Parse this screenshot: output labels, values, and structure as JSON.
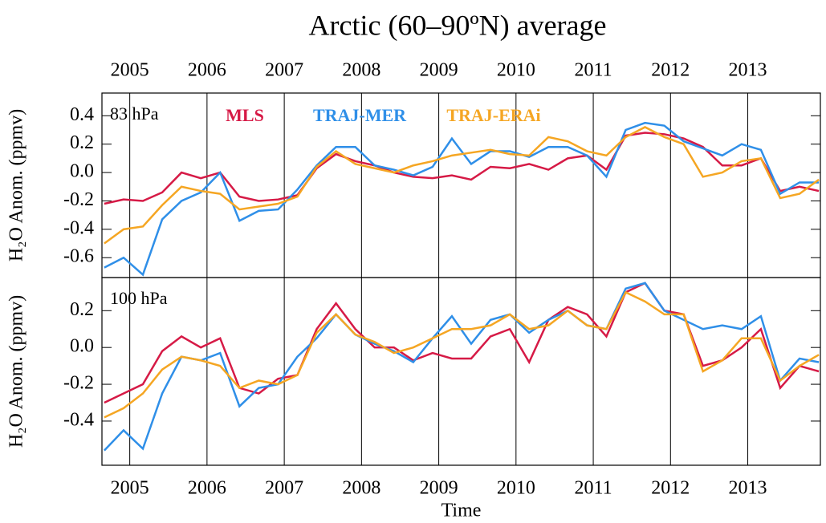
{
  "title": "Arctic (60–90ºN) average",
  "chart_data": [
    {
      "type": "line",
      "annotation": "83 hPa",
      "ylabel": "H₂O Anom. (ppmv)",
      "x": [
        2004.67,
        2004.92,
        2005.17,
        2005.42,
        2005.67,
        2005.92,
        2006.17,
        2006.42,
        2006.67,
        2006.92,
        2007.17,
        2007.42,
        2007.67,
        2007.92,
        2008.17,
        2008.42,
        2008.67,
        2008.92,
        2009.17,
        2009.42,
        2009.67,
        2009.92,
        2010.17,
        2010.42,
        2010.67,
        2010.92,
        2011.17,
        2011.42,
        2011.67,
        2011.92,
        2012.17,
        2012.42,
        2012.67,
        2012.92,
        2013.17,
        2013.42,
        2013.67,
        2013.92
      ],
      "xlim": [
        2004.64,
        2013.94
      ],
      "xticks": [
        2005,
        2006,
        2007,
        2008,
        2009,
        2010,
        2011,
        2012,
        2013
      ],
      "ylim": [
        -0.74,
        0.56
      ],
      "yticks": [
        0.4,
        0.2,
        {
          "value": 0,
          "label": "0.0"
        },
        -0.2,
        -0.4,
        -0.6
      ],
      "grid": true,
      "series": [
        {
          "name": "MLS",
          "color": "#d61a46",
          "values": [
            -0.22,
            -0.19,
            -0.2,
            -0.14,
            0.0,
            -0.04,
            0.0,
            -0.17,
            -0.2,
            -0.19,
            -0.16,
            0.03,
            0.13,
            0.08,
            0.05,
            0.0,
            -0.03,
            -0.04,
            -0.02,
            -0.05,
            0.04,
            0.03,
            0.06,
            0.02,
            0.1,
            0.12,
            0.02,
            0.26,
            0.28,
            0.27,
            0.24,
            0.18,
            0.05,
            0.05,
            0.1,
            -0.13,
            -0.1,
            -0.13
          ]
        },
        {
          "name": "TRAJ-MER",
          "color": "#2f8fe8",
          "values": [
            -0.67,
            -0.6,
            -0.72,
            -0.33,
            -0.2,
            -0.14,
            0.0,
            -0.34,
            -0.27,
            -0.26,
            -0.12,
            0.05,
            0.18,
            0.18,
            0.05,
            0.02,
            -0.02,
            0.04,
            0.24,
            0.06,
            0.15,
            0.15,
            0.11,
            0.18,
            0.18,
            0.12,
            -0.03,
            0.3,
            0.35,
            0.33,
            0.22,
            0.17,
            0.12,
            0.2,
            0.16,
            -0.15,
            -0.07,
            -0.07
          ]
        },
        {
          "name": "TRAJ-ERAi",
          "color": "#f5a623",
          "values": [
            -0.5,
            -0.4,
            -0.38,
            -0.23,
            -0.1,
            -0.13,
            -0.15,
            -0.26,
            -0.24,
            -0.22,
            -0.17,
            0.04,
            0.15,
            0.06,
            0.03,
            0.0,
            0.05,
            0.08,
            0.12,
            0.14,
            0.16,
            0.13,
            0.12,
            0.25,
            0.22,
            0.15,
            0.12,
            0.25,
            0.32,
            0.25,
            0.2,
            -0.03,
            0.0,
            0.08,
            0.1,
            -0.18,
            -0.15,
            -0.05
          ]
        }
      ]
    },
    {
      "type": "line",
      "annotation": "100 hPa",
      "ylabel": "H₂O Anom. (ppmv)",
      "xlabel": "Time",
      "x": [
        2004.67,
        2004.92,
        2005.17,
        2005.42,
        2005.67,
        2005.92,
        2006.17,
        2006.42,
        2006.67,
        2006.92,
        2007.17,
        2007.42,
        2007.67,
        2007.92,
        2008.17,
        2008.42,
        2008.67,
        2008.92,
        2009.17,
        2009.42,
        2009.67,
        2009.92,
        2010.17,
        2010.42,
        2010.67,
        2010.92,
        2011.17,
        2011.42,
        2011.67,
        2011.92,
        2012.17,
        2012.42,
        2012.67,
        2012.92,
        2013.17,
        2013.42,
        2013.67,
        2013.92
      ],
      "xlim": [
        2004.64,
        2013.94
      ],
      "xticks": [
        2005,
        2006,
        2007,
        2008,
        2009,
        2010,
        2011,
        2012,
        2013
      ],
      "ylim": [
        -0.64,
        0.38
      ],
      "yticks": [
        0.2,
        {
          "value": 0,
          "label": "0.0"
        },
        -0.2,
        -0.4
      ],
      "grid": true,
      "series": [
        {
          "name": "MLS",
          "color": "#d61a46",
          "values": [
            -0.3,
            -0.25,
            -0.2,
            -0.02,
            0.06,
            0.0,
            0.05,
            -0.22,
            -0.25,
            -0.17,
            -0.15,
            0.1,
            0.24,
            0.1,
            0.0,
            0.0,
            -0.07,
            -0.03,
            -0.06,
            -0.06,
            0.06,
            0.1,
            -0.08,
            0.15,
            0.22,
            0.18,
            0.06,
            0.3,
            0.35,
            0.2,
            0.18,
            -0.1,
            -0.07,
            0.0,
            0.1,
            -0.22,
            -0.1,
            -0.13
          ]
        },
        {
          "name": "TRAJ-MER",
          "color": "#2f8fe8",
          "values": [
            -0.56,
            -0.45,
            -0.55,
            -0.25,
            -0.05,
            -0.07,
            -0.03,
            -0.32,
            -0.22,
            -0.2,
            -0.05,
            0.05,
            0.18,
            0.07,
            0.02,
            -0.02,
            -0.08,
            0.05,
            0.17,
            0.02,
            0.15,
            0.18,
            0.08,
            0.15,
            0.2,
            0.12,
            0.1,
            0.32,
            0.35,
            0.2,
            0.15,
            0.1,
            0.12,
            0.1,
            0.17,
            -0.18,
            -0.06,
            -0.08
          ]
        },
        {
          "name": "TRAJ-ERAi",
          "color": "#f5a623",
          "values": [
            -0.38,
            -0.33,
            -0.25,
            -0.12,
            -0.05,
            -0.07,
            -0.1,
            -0.22,
            -0.18,
            -0.2,
            -0.15,
            0.08,
            0.18,
            0.07,
            0.03,
            -0.03,
            0.0,
            0.05,
            0.1,
            0.1,
            0.12,
            0.18,
            0.1,
            0.12,
            0.2,
            0.12,
            0.1,
            0.3,
            0.25,
            0.18,
            0.18,
            -0.13,
            -0.07,
            0.05,
            0.05,
            -0.18,
            -0.1,
            -0.04
          ]
        }
      ]
    }
  ]
}
